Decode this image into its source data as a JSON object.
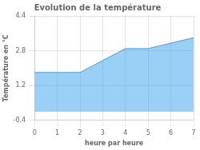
{
  "chart_data": {
    "type": "area",
    "title": "Evolution de la température",
    "xlabel": "heure par heure",
    "ylabel": "Température en °C",
    "x": [
      0,
      1,
      2,
      3,
      4,
      5,
      6,
      7
    ],
    "values": [
      1.8,
      1.8,
      1.8,
      2.35,
      2.9,
      2.9,
      3.15,
      3.4
    ],
    "xlim": [
      0,
      7
    ],
    "ylim": [
      -0.4,
      4.4
    ],
    "xticks": [
      0,
      1,
      2,
      3,
      4,
      5,
      6,
      7
    ],
    "yticks": [
      -0.4,
      1.2,
      2.8,
      4.4
    ],
    "grid": true
  }
}
